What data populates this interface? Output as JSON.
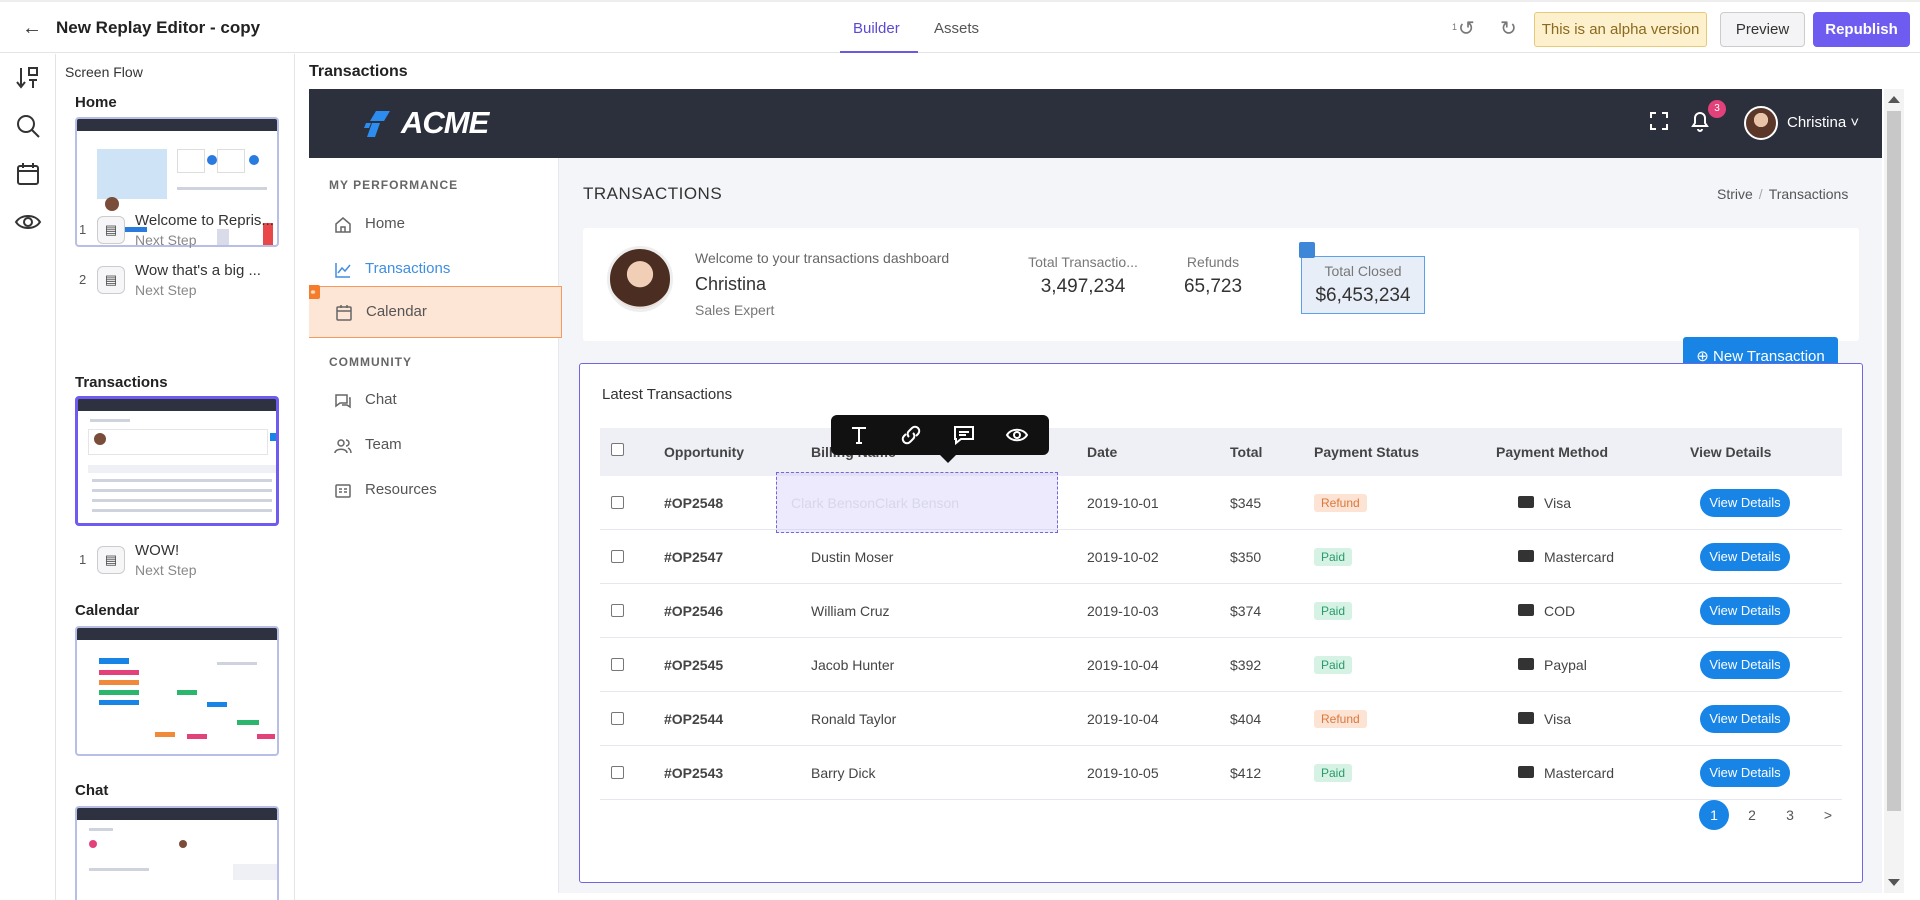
{
  "topbar": {
    "title": "New Replay Editor - copy",
    "tabs": [
      {
        "label": "Builder"
      },
      {
        "label": "Assets"
      }
    ],
    "undo_count": "1",
    "alpha_notice": "This is an alpha version",
    "preview_label": "Preview",
    "republish_label": "Republish"
  },
  "flow": {
    "title": "Screen Flow",
    "sections": [
      {
        "name": "Home",
        "steps": [
          {
            "num": "1",
            "title": "Welcome to Repris...",
            "sub": "Next Step"
          },
          {
            "num": "2",
            "title": "Wow that's a big ...",
            "sub": "Next Step"
          }
        ]
      },
      {
        "name": "Transactions",
        "steps": [
          {
            "num": "1",
            "title": "WOW!",
            "sub": "Next Step"
          }
        ]
      },
      {
        "name": "Calendar",
        "steps": []
      },
      {
        "name": "Chat",
        "steps": []
      }
    ]
  },
  "canvas": {
    "label": "Transactions"
  },
  "app": {
    "brand": "ACME",
    "notifications": "3",
    "user": "Christina",
    "nav_sections": [
      {
        "heading": "MY PERFORMANCE",
        "items": [
          {
            "label": "Home"
          },
          {
            "label": "Transactions"
          },
          {
            "label": "Calendar"
          }
        ]
      },
      {
        "heading": "COMMUNITY",
        "items": [
          {
            "label": "Chat"
          },
          {
            "label": "Team"
          },
          {
            "label": "Resources"
          }
        ]
      }
    ],
    "page_title": "TRANSACTIONS",
    "breadcrumb": [
      "Strive",
      "Transactions"
    ],
    "welcome": {
      "message": "Welcome to your transactions dashboard",
      "name": "Christina",
      "role": "Sales Expert"
    },
    "stats": [
      {
        "label": "Total Transactio...",
        "value": "3,497,234"
      },
      {
        "label": "Refunds",
        "value": "65,723"
      },
      {
        "label": "Total Closed",
        "value": "$6,453,234"
      }
    ],
    "new_transaction_label": "New Transaction",
    "table": {
      "title": "Latest Transactions",
      "columns": [
        "Opportunity",
        "Billing Name",
        "Date",
        "Total",
        "Payment Status",
        "Payment Method",
        "View Details"
      ],
      "edit_ghost_text": "Clark BensonClark Benson",
      "rows": [
        {
          "op": "#OP2548",
          "name": "",
          "date": "2019-10-01",
          "total": "$345",
          "status": "Refund",
          "method": "Visa",
          "view": "View Details"
        },
        {
          "op": "#OP2547",
          "name": "Dustin Moser",
          "date": "2019-10-02",
          "total": "$350",
          "status": "Paid",
          "method": "Mastercard",
          "view": "View Details"
        },
        {
          "op": "#OP2546",
          "name": "William Cruz",
          "date": "2019-10-03",
          "total": "$374",
          "status": "Paid",
          "method": "COD",
          "view": "View Details"
        },
        {
          "op": "#OP2545",
          "name": "Jacob Hunter",
          "date": "2019-10-04",
          "total": "$392",
          "status": "Paid",
          "method": "Paypal",
          "view": "View Details"
        },
        {
          "op": "#OP2544",
          "name": "Ronald Taylor",
          "date": "2019-10-04",
          "total": "$404",
          "status": "Refund",
          "method": "Visa",
          "view": "View Details"
        },
        {
          "op": "#OP2543",
          "name": "Barry Dick",
          "date": "2019-10-05",
          "total": "$412",
          "status": "Paid",
          "method": "Mastercard",
          "view": "View Details"
        }
      ],
      "pages": [
        "1",
        "2",
        "3",
        ">"
      ]
    }
  }
}
